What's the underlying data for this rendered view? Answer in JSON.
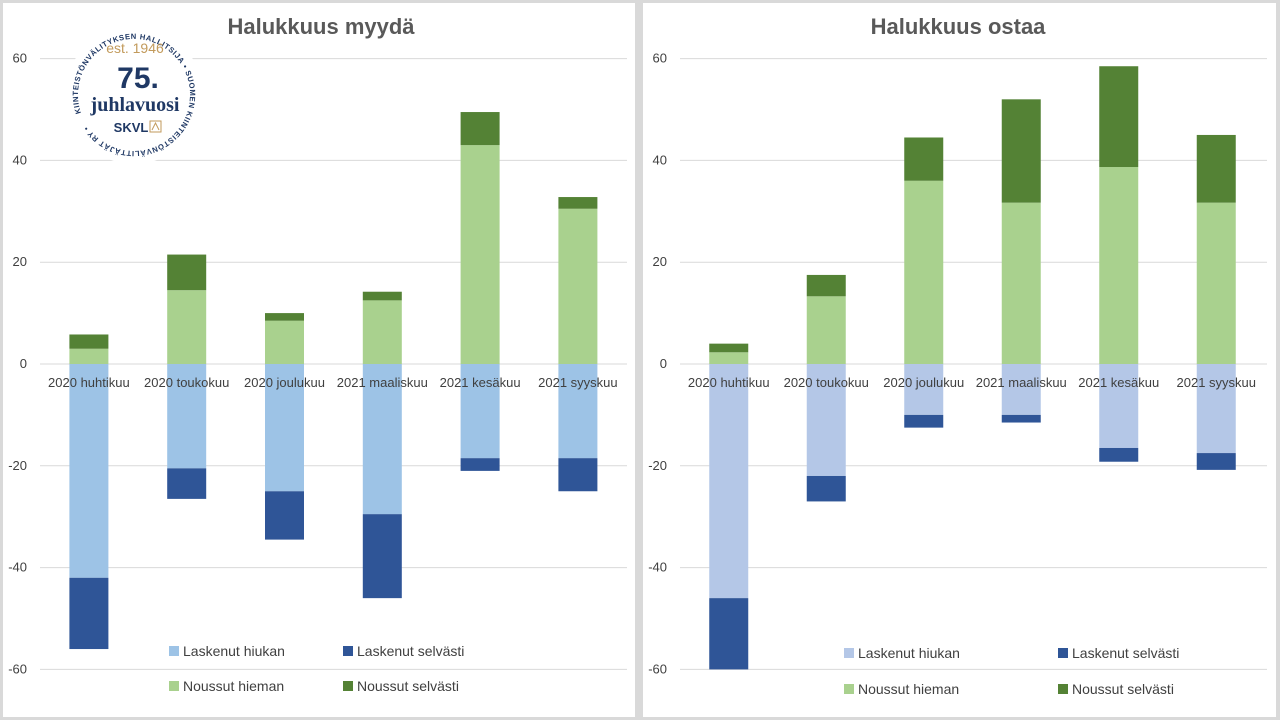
{
  "logo": {
    "ring_text": "KIINTEISTÖNVÄLITYKSEN HALLITSIJA • SUOMEN KIINTEISTÖNVÄLITTÄJÄT RY •",
    "est": "est. 1946",
    "number": "75.",
    "word": "juhlavuosi",
    "brand": "SKVL"
  },
  "chart_data": [
    {
      "type": "bar",
      "stacked": true,
      "title": "Halukkuus myydä",
      "categories": [
        "2020 huhtikuu",
        "2020 toukokuu",
        "2020 joulukuu",
        "2021 maaliskuu",
        "2021 kesäkuu",
        "2021 syyskuu"
      ],
      "ylim": [
        -60,
        60
      ],
      "yticks": [
        -60,
        -40,
        -20,
        0,
        20,
        40,
        60
      ],
      "grid": true,
      "legend_position": "bottom",
      "series": [
        {
          "name": "Laskenut hiukan",
          "color": "#9dc3e6",
          "values": [
            -42,
            -20.5,
            -25,
            -29.5,
            -18.5,
            -18.5
          ]
        },
        {
          "name": "Laskenut selvästi",
          "color": "#2f5597",
          "values": [
            -14,
            -6,
            -9.5,
            -16.5,
            -2.5,
            -6.5
          ]
        },
        {
          "name": "Noussut hieman",
          "color": "#a9d18e",
          "values": [
            3,
            14.5,
            8.5,
            12.5,
            43,
            30.5
          ]
        },
        {
          "name": "Noussut selvästi",
          "color": "#548235",
          "values": [
            2.8,
            7,
            1.5,
            1.7,
            6.5,
            2.3
          ]
        }
      ]
    },
    {
      "type": "bar",
      "stacked": true,
      "title": "Halukkuus ostaa",
      "categories": [
        "2020 huhtikuu",
        "2020 toukokuu",
        "2020 joulukuu",
        "2021 maaliskuu",
        "2021 kesäkuu",
        "2021 syyskuu"
      ],
      "ylim": [
        -60,
        60
      ],
      "yticks": [
        -60,
        -40,
        -20,
        0,
        20,
        40,
        60
      ],
      "grid": true,
      "legend_position": "bottom",
      "series": [
        {
          "name": "Laskenut hiukan",
          "color": "#b4c7e7",
          "values": [
            -46,
            -22,
            -10,
            -10,
            -16.5,
            -17.5
          ]
        },
        {
          "name": "Laskenut selvästi",
          "color": "#2f5597",
          "values": [
            -14,
            -5,
            -2.5,
            -1.5,
            -2.7,
            -3.3
          ]
        },
        {
          "name": "Noussut hieman",
          "color": "#a9d18e",
          "values": [
            2.3,
            13.3,
            36,
            31.7,
            38.7,
            31.7
          ]
        },
        {
          "name": "Noussut selvästi",
          "color": "#548235",
          "values": [
            1.7,
            4.2,
            8.5,
            20.3,
            19.8,
            13.3
          ]
        }
      ]
    }
  ]
}
